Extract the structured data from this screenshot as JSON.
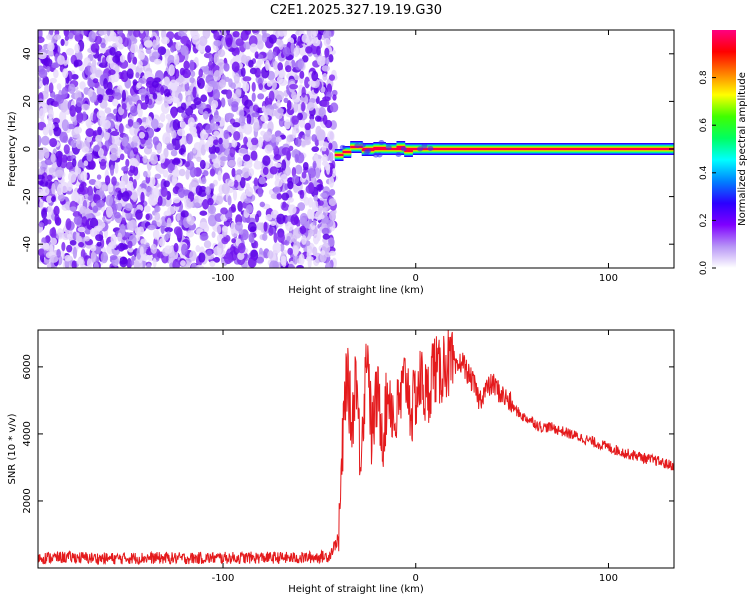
{
  "title": "C2E1.2025.327.19.19.G30",
  "chart_data": [
    {
      "type": "heatmap",
      "xlabel": "Height of straight line (km)",
      "ylabel": "Frequency (Hz)",
      "xlim": [
        -196,
        134
      ],
      "ylim": [
        -50,
        50
      ],
      "xticks": [
        -100,
        0,
        100
      ],
      "xtick_labels": [
        "-100",
        "0",
        "100"
      ],
      "yticks": [
        -40,
        -20,
        0,
        20,
        40
      ],
      "ytick_labels": [
        "-40",
        "-20",
        "0",
        "20",
        "40"
      ],
      "description_points": {
        "noise_region_x": [
          -196,
          -42
        ],
        "signal_line_frequency": 0,
        "signal_start_x": -42
      },
      "colorbar": {
        "label": "Normalized spectral amplitude",
        "range": [
          0.0,
          1.0
        ],
        "ticks": [
          0.0,
          0.2,
          0.4,
          0.6,
          0.8
        ],
        "tick_labels": [
          "0.0",
          "0.2",
          "0.4",
          "0.6",
          "0.8"
        ],
        "colormap": [
          "#ffffff",
          "#b794f6",
          "#7f00ff",
          "#2b00ff",
          "#0080ff",
          "#00ffff",
          "#00ff60",
          "#40ff00",
          "#ffff00",
          "#ff8000",
          "#ff0000",
          "#ff0080"
        ]
      },
      "grid": false
    },
    {
      "type": "line",
      "xlabel": "Height of straight line (km)",
      "ylabel": "SNR (10 * v/v)",
      "xlim": [
        -196,
        134
      ],
      "ylim": [
        0,
        7100
      ],
      "xticks": [
        -100,
        0,
        100
      ],
      "xtick_labels": [
        "-100",
        "0",
        "100"
      ],
      "yticks": [
        2000,
        4000,
        6000
      ],
      "ytick_labels": [
        "2000",
        "4000",
        "6000"
      ],
      "series": [
        {
          "color": "#e41a1c",
          "x": [
            -196,
            -180,
            -160,
            -140,
            -120,
            -100,
            -80,
            -60,
            -45,
            -40,
            -38,
            -36,
            -33,
            -31,
            -29,
            -27,
            -25,
            -23,
            -20,
            -17,
            -14,
            -11,
            -8,
            -5,
            -2,
            0,
            3,
            6,
            9,
            12,
            15,
            18,
            21,
            24,
            27,
            30,
            33,
            36,
            40,
            44,
            48,
            52,
            56,
            60,
            65,
            70,
            75,
            80,
            85,
            90,
            95,
            100,
            105,
            110,
            115,
            120,
            125,
            130,
            134
          ],
          "y": [
            300,
            320,
            280,
            300,
            290,
            300,
            310,
            300,
            350,
            900,
            3500,
            5900,
            4200,
            6100,
            3400,
            4800,
            6900,
            3900,
            5200,
            4000,
            5400,
            4300,
            5000,
            5700,
            4600,
            5200,
            5600,
            5000,
            6100,
            5700,
            6200,
            6000,
            5900,
            6200,
            5800,
            5500,
            5000,
            5300,
            5500,
            5200,
            5000,
            4700,
            4500,
            4400,
            4200,
            4200,
            4100,
            4000,
            3900,
            3800,
            3700,
            3600,
            3500,
            3400,
            3350,
            3250,
            3200,
            3100,
            3050
          ]
        }
      ],
      "grid": false
    }
  ]
}
